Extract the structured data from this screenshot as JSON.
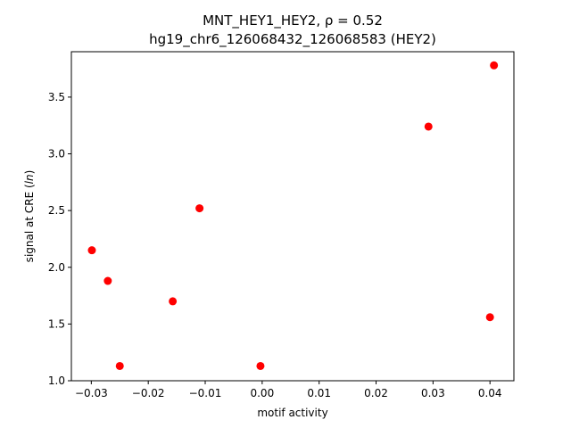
{
  "chart_data": {
    "type": "scatter",
    "title_line1": "MNT_HEY1_HEY2, ρ = 0.52",
    "title_line2": "hg19_chr6_126068432_126068583 (HEY2)",
    "xlabel": "motif activity",
    "ylabel_prefix": "signal at CRE (",
    "ylabel_italic": "ln",
    "ylabel_suffix": ")",
    "xlim": [
      -0.0335,
      0.0442
    ],
    "ylim": [
      1.0,
      3.9
    ],
    "x_ticks": [
      -0.03,
      -0.02,
      -0.01,
      0.0,
      0.01,
      0.02,
      0.03,
      0.04
    ],
    "x_tick_labels": [
      "−0.03",
      "−0.02",
      "−0.01",
      "0.00",
      "0.01",
      "0.02",
      "0.03",
      "0.04"
    ],
    "y_ticks": [
      1.0,
      1.5,
      2.0,
      2.5,
      3.0,
      3.5
    ],
    "y_tick_labels": [
      "1.0",
      "1.5",
      "2.0",
      "2.5",
      "3.0",
      "3.5"
    ],
    "grid": false,
    "marker_color": "#ff0000",
    "points": [
      {
        "x": -0.0299,
        "y": 2.15
      },
      {
        "x": -0.0271,
        "y": 1.88
      },
      {
        "x": -0.025,
        "y": 1.13
      },
      {
        "x": -0.0157,
        "y": 1.7
      },
      {
        "x": -0.011,
        "y": 2.52
      },
      {
        "x": -0.0003,
        "y": 1.13
      },
      {
        "x": 0.0292,
        "y": 3.24
      },
      {
        "x": 0.04,
        "y": 1.56
      },
      {
        "x": 0.0407,
        "y": 3.78
      }
    ]
  }
}
